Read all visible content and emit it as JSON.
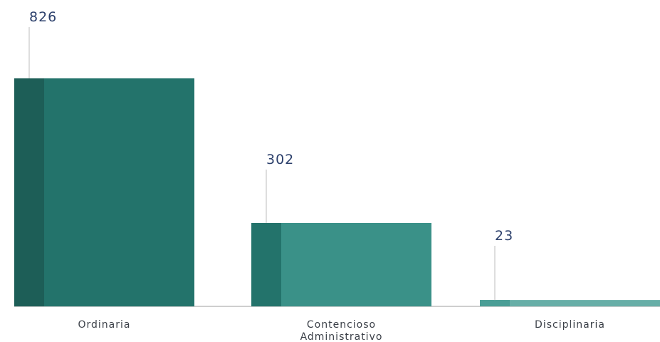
{
  "chart_data": {
    "type": "bar",
    "categories": [
      [
        "Ordinaria"
      ],
      [
        "Contencioso",
        "Administrativo"
      ],
      [
        "Disciplinaria"
      ]
    ],
    "values": [
      826,
      302,
      23
    ],
    "data_labels": [
      "826",
      "302",
      "23"
    ],
    "title": "",
    "xlabel": "",
    "ylabel": "",
    "ylim": [
      0,
      826
    ],
    "grid": false,
    "legend": "none",
    "colors": {
      "bars_main": [
        "#23736b",
        "#3a9188",
        "#67aea7"
      ],
      "bars_accent": [
        "#1d5e57",
        "#23736b",
        "#4a9e96"
      ],
      "leader": "#bdbdbd",
      "baseline": "#bdbdbd",
      "value_text": "#2b3f6b",
      "category_text": "#3a3f47"
    }
  }
}
